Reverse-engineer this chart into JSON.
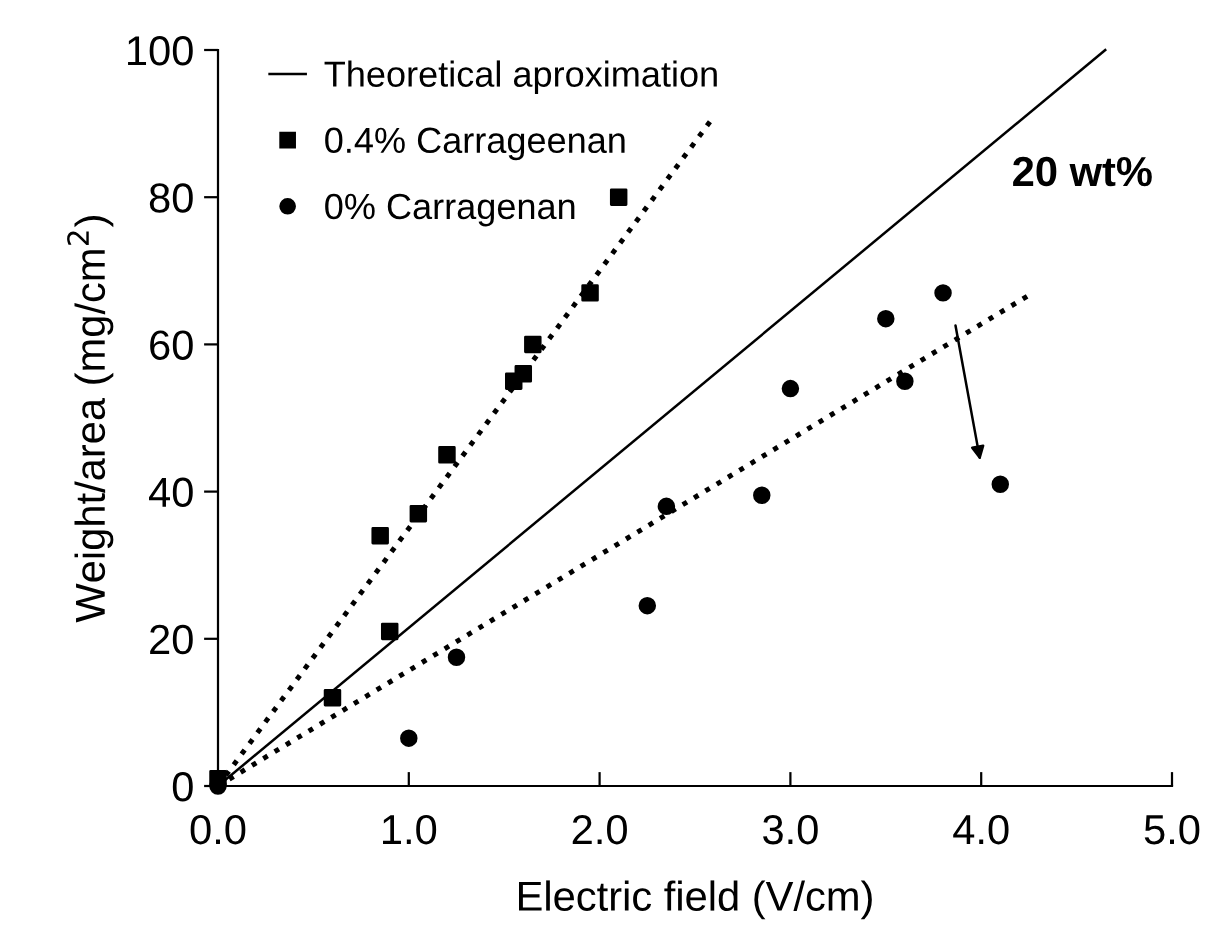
{
  "chart_data": {
    "type": "scatter",
    "xlabel": "Electric field (V/cm)",
    "ylabel": "Weight/area (mg/cm$^{2}$)",
    "xlim": [
      0,
      5
    ],
    "ylim": [
      0,
      100
    ],
    "xticks": [
      {
        "value": 0,
        "label": "0.0"
      },
      {
        "value": 1,
        "label": "1.0"
      },
      {
        "value": 2,
        "label": "2.0"
      },
      {
        "value": 3,
        "label": "3.0"
      },
      {
        "value": 4,
        "label": "4.0"
      },
      {
        "value": 5,
        "label": "5.0"
      }
    ],
    "yticks": [
      0,
      20,
      40,
      60,
      80,
      100
    ],
    "grid": false,
    "legend": "top left",
    "annotations": [
      "20 wt%"
    ],
    "series": [
      {
        "name": "Theoretical aproximation",
        "type": "line",
        "line_style": "solid",
        "marker": "none",
        "color": "#000000",
        "x": [
          0,
          4.65
        ],
        "values": [
          0,
          100
        ]
      },
      {
        "name": "0.4% Carrageenan",
        "marker": "square",
        "color": "#000000",
        "x": [
          0,
          0.6,
          0.85,
          0.9,
          1.05,
          1.2,
          1.55,
          1.6,
          1.65,
          1.95,
          2.1
        ],
        "values": [
          1,
          12,
          34,
          21,
          37,
          45,
          55,
          56,
          60,
          67,
          80
        ]
      },
      {
        "name": "0% Carragenan",
        "marker": "circle",
        "color": "#000000",
        "x": [
          0,
          1.0,
          1.25,
          2.25,
          2.35,
          2.85,
          3.0,
          3.5,
          3.6,
          3.8,
          4.1
        ],
        "values": [
          0,
          6.5,
          17.5,
          24.5,
          38,
          39.5,
          54,
          63.5,
          55,
          67,
          41
        ]
      },
      {
        "type": "line",
        "line_style": "dotted",
        "marker": "none",
        "color": "#000000",
        "x": [
          0,
          2.6
        ],
        "values": [
          0,
          91
        ]
      },
      {
        "type": "line",
        "line_style": "dotted",
        "marker": "none",
        "color": "#000000",
        "x": [
          0,
          4.27
        ],
        "values": [
          0,
          67
        ]
      }
    ]
  }
}
